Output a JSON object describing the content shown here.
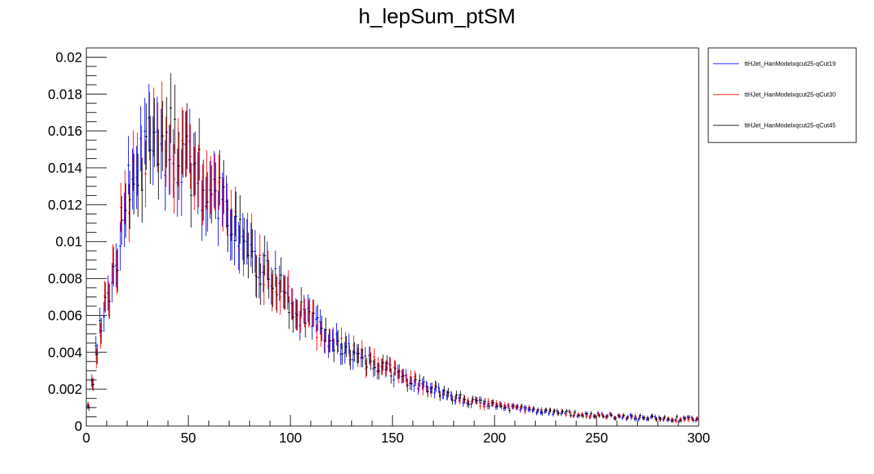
{
  "chart_data": {
    "type": "scatter",
    "title": "h_lepSum_ptSM",
    "xlabel": "",
    "ylabel": "",
    "xlim": [
      0,
      300
    ],
    "ylim": [
      0,
      0.0205
    ],
    "x_ticks": [
      0,
      50,
      100,
      150,
      200,
      250,
      300
    ],
    "x_tick_labels": [
      "0",
      "50",
      "100",
      "150",
      "200",
      "250",
      "300"
    ],
    "y_ticks": [
      0,
      0.002,
      0.004,
      0.006,
      0.008,
      0.01,
      0.012,
      0.014,
      0.016,
      0.018,
      0.02
    ],
    "y_tick_labels": [
      "0",
      "0.002",
      "0.004",
      "0.006",
      "0.008",
      "0.01",
      "0.012",
      "0.014",
      "0.016",
      "0.018",
      "0.02"
    ],
    "grid": false,
    "legend_position": "top-right outside plot",
    "bin_width": 2,
    "envelope": {
      "x": [
        0,
        2,
        4,
        6,
        8,
        10,
        12,
        14,
        16,
        18,
        20,
        25,
        30,
        35,
        40,
        45,
        50,
        55,
        60,
        65,
        70,
        80,
        90,
        100,
        110,
        120,
        130,
        140,
        150,
        160,
        170,
        180,
        190,
        200,
        210,
        220,
        230,
        240,
        250,
        260,
        270,
        280,
        290,
        300
      ],
      "y": [
        0.0006,
        0.0015,
        0.0032,
        0.0048,
        0.0058,
        0.0068,
        0.0079,
        0.0088,
        0.0099,
        0.0112,
        0.0124,
        0.0138,
        0.0148,
        0.0154,
        0.0155,
        0.015,
        0.0143,
        0.0136,
        0.0128,
        0.012,
        0.0112,
        0.0096,
        0.008,
        0.0067,
        0.0056,
        0.0047,
        0.004,
        0.0034,
        0.0029,
        0.0024,
        0.002,
        0.0016,
        0.0013,
        0.0011,
        0.00095,
        0.00085,
        0.00075,
        0.00065,
        0.00058,
        0.00052,
        0.00047,
        0.00043,
        0.00039,
        0.00035
      ]
    },
    "series": [
      {
        "name": "ttHJet_HanModelxqcut25-qCut19",
        "color": "#0000ff",
        "x_offset": -0.35,
        "seed": 19
      },
      {
        "name": "ttHJet_HanModelxqcut25-qCut30",
        "color": "#ff0000",
        "x_offset": 0.0,
        "seed": 30
      },
      {
        "name": "ttHJet_HanModelxqcut25-qCut45",
        "color": "#000000",
        "x_offset": 0.35,
        "seed": 45
      }
    ]
  }
}
